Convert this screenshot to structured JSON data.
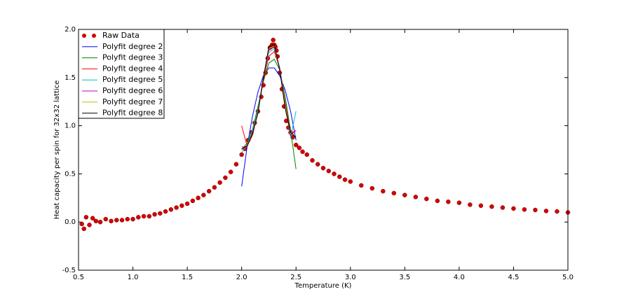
{
  "chart_data": {
    "type": "line",
    "xlabel": "Temperature (K)",
    "ylabel": "Heat capacity per spin for 32x32 lattice",
    "xlim": [
      0.5,
      5.0
    ],
    "ylim": [
      -0.5,
      2.0
    ],
    "xticks": [
      {
        "value": 0.5,
        "label": "0.5"
      },
      {
        "value": 1.0,
        "label": "1.0"
      },
      1.5,
      {
        "value": 2.0,
        "label": "2.0"
      },
      2.5,
      {
        "value": 3.0,
        "label": "3.0"
      },
      3.5,
      {
        "value": 4.0,
        "label": "4.0"
      },
      4.5,
      {
        "value": 5.0,
        "label": "5.0"
      }
    ],
    "yticks": [
      -0.5,
      {
        "value": 0.0,
        "label": "0.0"
      },
      0.5,
      {
        "value": 1.0,
        "label": "1.0"
      },
      1.5,
      {
        "value": 2.0,
        "label": "2.0"
      }
    ],
    "legend": "upper left",
    "series": [
      {
        "name": "Raw Data",
        "type": "scatter",
        "color": "#d40000",
        "x": [
          0.53,
          0.55,
          0.57,
          0.6,
          0.63,
          0.66,
          0.7,
          0.75,
          0.8,
          0.85,
          0.9,
          0.95,
          1.0,
          1.05,
          1.1,
          1.15,
          1.2,
          1.25,
          1.3,
          1.35,
          1.4,
          1.45,
          1.5,
          1.55,
          1.6,
          1.65,
          1.7,
          1.75,
          1.8,
          1.85,
          1.9,
          1.95,
          2.0,
          2.03,
          2.06,
          2.09,
          2.12,
          2.15,
          2.18,
          2.2,
          2.22,
          2.24,
          2.26,
          2.27,
          2.28,
          2.29,
          2.3,
          2.31,
          2.32,
          2.33,
          2.35,
          2.37,
          2.39,
          2.41,
          2.43,
          2.45,
          2.47,
          2.5,
          2.53,
          2.56,
          2.6,
          2.65,
          2.7,
          2.75,
          2.8,
          2.85,
          2.9,
          2.95,
          3.0,
          3.1,
          3.2,
          3.3,
          3.4,
          3.5,
          3.6,
          3.7,
          3.8,
          3.9,
          4.0,
          4.1,
          4.2,
          4.3,
          4.4,
          4.5,
          4.6,
          4.7,
          4.8,
          4.9,
          5.0
        ],
        "values": [
          -0.02,
          -0.07,
          0.05,
          -0.03,
          0.04,
          0.01,
          0.0,
          0.03,
          0.01,
          0.02,
          0.02,
          0.03,
          0.03,
          0.05,
          0.06,
          0.06,
          0.08,
          0.09,
          0.11,
          0.13,
          0.15,
          0.17,
          0.19,
          0.22,
          0.25,
          0.28,
          0.32,
          0.36,
          0.41,
          0.46,
          0.52,
          0.6,
          0.7,
          0.76,
          0.85,
          0.93,
          1.03,
          1.15,
          1.3,
          1.42,
          1.55,
          1.7,
          1.81,
          1.82,
          1.84,
          1.89,
          1.84,
          1.82,
          1.78,
          1.72,
          1.55,
          1.38,
          1.2,
          1.05,
          0.98,
          0.93,
          0.88,
          0.8,
          0.77,
          0.73,
          0.7,
          0.64,
          0.6,
          0.56,
          0.53,
          0.5,
          0.47,
          0.44,
          0.42,
          0.38,
          0.35,
          0.32,
          0.3,
          0.28,
          0.26,
          0.24,
          0.22,
          0.21,
          0.2,
          0.18,
          0.17,
          0.16,
          0.15,
          0.14,
          0.13,
          0.125,
          0.115,
          0.11,
          0.1
        ]
      },
      {
        "name": "Polyfit degree 2",
        "type": "line",
        "color": "#0000ff",
        "x": [
          2.0,
          2.05,
          2.1,
          2.15,
          2.2,
          2.25,
          2.3,
          2.35,
          2.4,
          2.45,
          2.5
        ],
        "values": [
          0.37,
          0.78,
          1.1,
          1.35,
          1.52,
          1.6,
          1.6,
          1.52,
          1.37,
          1.15,
          0.85
        ]
      },
      {
        "name": "Polyfit degree 3",
        "type": "line",
        "color": "#008000",
        "x": [
          2.0,
          2.05,
          2.1,
          2.15,
          2.2,
          2.25,
          2.3,
          2.35,
          2.4,
          2.45,
          2.5
        ],
        "values": [
          0.75,
          0.82,
          0.96,
          1.2,
          1.46,
          1.65,
          1.69,
          1.58,
          1.3,
          0.95,
          0.55
        ]
      },
      {
        "name": "Polyfit degree 4",
        "type": "line",
        "color": "#ff0000",
        "x": [
          2.0,
          2.05,
          2.1,
          2.15,
          2.2,
          2.25,
          2.3,
          2.35,
          2.4,
          2.45,
          2.5
        ],
        "values": [
          1.0,
          0.79,
          0.9,
          1.15,
          1.47,
          1.72,
          1.77,
          1.6,
          1.25,
          0.92,
          0.95
        ]
      },
      {
        "name": "Polyfit degree 5",
        "type": "line",
        "color": "#00bfbf",
        "x": [
          2.0,
          2.05,
          2.1,
          2.15,
          2.2,
          2.25,
          2.3,
          2.35,
          2.4,
          2.45,
          2.5
        ],
        "values": [
          0.72,
          0.8,
          0.95,
          1.17,
          1.5,
          1.76,
          1.8,
          1.6,
          1.22,
          0.88,
          1.15
        ]
      },
      {
        "name": "Polyfit degree 6",
        "type": "line",
        "color": "#bf00bf",
        "x": [
          2.0,
          2.05,
          2.1,
          2.15,
          2.2,
          2.25,
          2.3,
          2.35,
          2.4,
          2.45,
          2.5
        ],
        "values": [
          0.78,
          0.78,
          0.93,
          1.15,
          1.5,
          1.78,
          1.82,
          1.6,
          1.2,
          0.9,
          0.95
        ]
      },
      {
        "name": "Polyfit degree 7",
        "type": "line",
        "color": "#bfbf00",
        "x": [
          2.0,
          2.05,
          2.1,
          2.15,
          2.2,
          2.25,
          2.3,
          2.35,
          2.4,
          2.45,
          2.5
        ],
        "values": [
          0.75,
          0.8,
          0.92,
          1.14,
          1.5,
          1.8,
          1.83,
          1.58,
          1.2,
          0.92,
          0.9
        ]
      },
      {
        "name": "Polyfit degree 8",
        "type": "line",
        "color": "#000000",
        "x": [
          2.0,
          2.05,
          2.1,
          2.15,
          2.2,
          2.25,
          2.3,
          2.35,
          2.4,
          2.45,
          2.5
        ],
        "values": [
          0.76,
          0.79,
          0.92,
          1.13,
          1.5,
          1.82,
          1.84,
          1.58,
          1.18,
          0.93,
          0.88
        ]
      }
    ]
  }
}
